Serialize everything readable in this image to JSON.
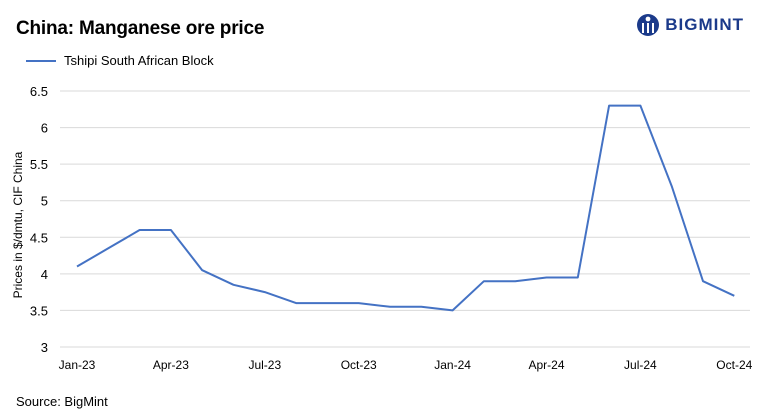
{
  "title": "China: Manganese ore price",
  "brand": {
    "name": "BIGMINT",
    "color": "#1b3a8a",
    "icon": "bigmint-logo-icon"
  },
  "source": "Source: BigMint",
  "chart_data": {
    "type": "line",
    "title": "China: Manganese ore price",
    "ylabel": "Prices in $/dmtu, CIF China",
    "xlabel": "",
    "ylim": [
      3,
      6.5
    ],
    "yticks": [
      "3",
      "3.5",
      "4",
      "4.5",
      "5",
      "5.5",
      "6",
      "6.5"
    ],
    "ytick_values": [
      3,
      3.5,
      4,
      4.5,
      5,
      5.5,
      6,
      6.5
    ],
    "x": [
      "Jan-23",
      "Feb-23",
      "Mar-23",
      "Apr-23",
      "May-23",
      "Jun-23",
      "Jul-23",
      "Aug-23",
      "Sep-23",
      "Oct-23",
      "Nov-23",
      "Dec-23",
      "Jan-24",
      "Feb-24",
      "Mar-24",
      "Apr-24",
      "May-24",
      "Jun-24",
      "Jul-24",
      "Aug-24",
      "Sep-24",
      "Oct-24"
    ],
    "xtick_labels": [
      "Jan-23",
      "Apr-23",
      "Jul-23",
      "Oct-23",
      "Jan-24",
      "Apr-24",
      "Jul-24",
      "Oct-24"
    ],
    "xtick_indices": [
      0,
      3,
      6,
      9,
      12,
      15,
      18,
      21
    ],
    "series": [
      {
        "name": "Tshipi South African Block",
        "color": "#4472c4",
        "values": [
          4.1,
          4.35,
          4.6,
          4.6,
          4.05,
          3.85,
          3.75,
          3.6,
          3.6,
          3.6,
          3.55,
          3.55,
          3.5,
          3.9,
          3.9,
          3.95,
          3.95,
          6.3,
          6.3,
          5.2,
          3.9,
          3.7
        ]
      }
    ],
    "grid": "horizontal",
    "legend": "top-left"
  }
}
